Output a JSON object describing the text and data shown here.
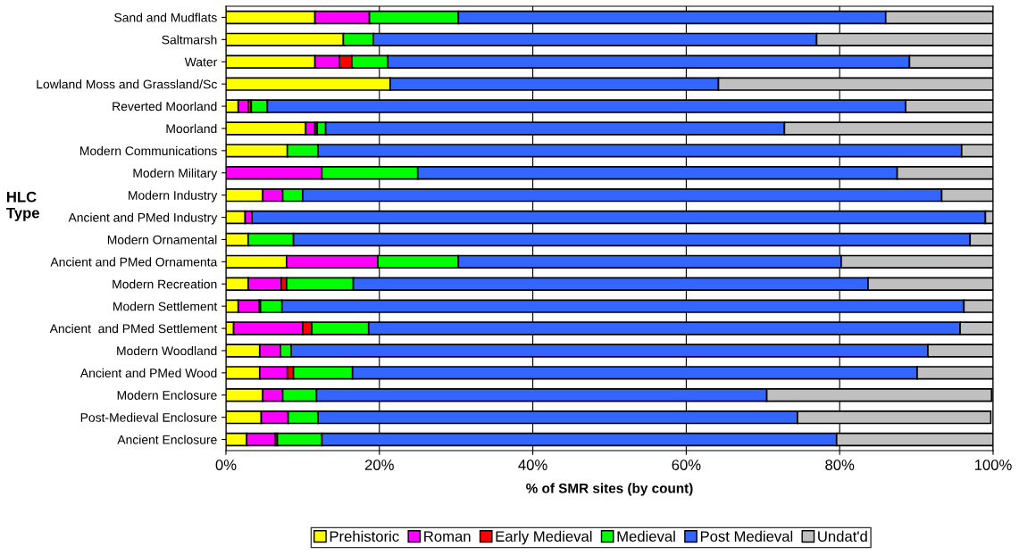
{
  "chart_data": {
    "type": "bar",
    "orientation": "horizontal",
    "stacked": true,
    "xlabel": "% of SMR sites (by count)",
    "ylabel": "HLC\nType",
    "categories": [
      "Sand and Mudflats",
      "Saltmarsh",
      "Water",
      "Lowland Moss and Grassland/Sc",
      "Reverted Moorland",
      "Moorland",
      "Modern Communications",
      "Modern Military",
      "Modern Industry",
      "Ancient and PMed Industry",
      "Modern Ornamental",
      "Ancient and PMed Ornamenta",
      "Modern Recreation",
      "Modern Settlement",
      "Ancient  and PMed Settlement",
      "Modern Woodland",
      "Ancient and PMed Wood",
      "Modern Enclosure",
      "Post-Medieval Enclosure",
      "Ancient Enclosure"
    ],
    "series": [
      {
        "name": "Prehistoric",
        "color": "#ffff00",
        "values": [
          11.6,
          15.3,
          11.6,
          21.4,
          1.6,
          10.4,
          8.0,
          0,
          4.8,
          2.5,
          2.9,
          7.9,
          2.9,
          1.6,
          1.0,
          4.4,
          4.4,
          4.8,
          4.6,
          2.7
        ]
      },
      {
        "name": "Roman",
        "color": "#ff00ff",
        "values": [
          7.1,
          0,
          3.2,
          0,
          1.3,
          1.2,
          0,
          12.5,
          2.6,
          0.9,
          0,
          11.9,
          4.3,
          2.7,
          9.0,
          2.7,
          3.6,
          2.6,
          3.5,
          3.7
        ]
      },
      {
        "name": "Early Medieval",
        "color": "#ff0000",
        "values": [
          0,
          0,
          1.6,
          0,
          0.4,
          0.3,
          0,
          0,
          0,
          0,
          0,
          0,
          0.7,
          0.2,
          1.2,
          0,
          0.8,
          null,
          null,
          0.3
        ]
      },
      {
        "name": "Medieval",
        "color": "#00ff00",
        "values": [
          11.6,
          3.9,
          4.7,
          0,
          2.1,
          1.1,
          4.0,
          12.5,
          2.6,
          0,
          5.9,
          10.5,
          8.7,
          2.8,
          7.4,
          1.4,
          7.7,
          4.4,
          3.9,
          5.8
        ]
      },
      {
        "name": "Post Medieval",
        "color": "#3366ff",
        "values": [
          55.7,
          57.8,
          68.0,
          42.8,
          83.2,
          59.8,
          83.9,
          62.5,
          83.3,
          95.6,
          88.2,
          49.9,
          67.1,
          88.9,
          77.1,
          83.0,
          73.6,
          58.7,
          62.5,
          67.1
        ]
      },
      {
        "name": "Undat'd",
        "color": "#c0c0c0",
        "values": [
          14.0,
          23.0,
          10.9,
          35.8,
          11.4,
          27.2,
          4.1,
          12.5,
          6.7,
          1.0,
          3.0,
          19.8,
          16.3,
          3.8,
          4.3,
          8.5,
          9.9,
          29.3,
          25.2,
          20.4
        ]
      }
    ],
    "xlim": [
      0,
      100
    ],
    "xticks": [
      {
        "value": 0,
        "label": "0%"
      },
      {
        "value": 20,
        "label": "20%"
      },
      {
        "value": 40,
        "label": "40%"
      },
      {
        "value": 60,
        "label": "60%"
      },
      {
        "value": 80,
        "label": "80%"
      },
      {
        "value": 100,
        "label": "100%"
      }
    ],
    "grid": "x",
    "legend": "bottom"
  }
}
